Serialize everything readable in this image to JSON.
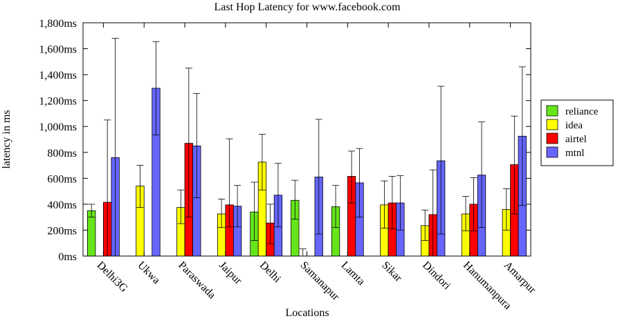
{
  "chart_data": {
    "type": "bar",
    "title": "Last Hop Latency for www.facebook.com",
    "xlabel": "Locations",
    "ylabel": "latency in ms",
    "ylim": [
      0,
      1800
    ],
    "y_ticks": [
      "0ms",
      "200ms",
      "400ms",
      "600ms",
      "800ms",
      "1,000ms",
      "1,200ms",
      "1,400ms",
      "1,600ms",
      "1,800ms"
    ],
    "categories": [
      "Delhi3G",
      "Ukwa",
      "Paraswada",
      "Jaipur",
      "Delhi",
      "Samanapur",
      "Lamta",
      "Sikar",
      "Dindori",
      "Hanumanpura",
      "Amarpur"
    ],
    "legend_position": "right",
    "grid": false,
    "series": [
      {
        "name": "reliance",
        "color": "#66e61a",
        "values": [
          350,
          null,
          null,
          null,
          340,
          430,
          380,
          null,
          null,
          null,
          null
        ],
        "err_low": [
          300,
          null,
          null,
          null,
          120,
          285,
          220,
          null,
          null,
          null,
          null
        ],
        "err_high": [
          400,
          null,
          null,
          null,
          570,
          585,
          545,
          null,
          null,
          null,
          null
        ]
      },
      {
        "name": "idea",
        "color": "#ffff00",
        "values": [
          null,
          540,
          375,
          325,
          725,
          0,
          null,
          395,
          235,
          325,
          360
        ],
        "err_low": [
          null,
          375,
          250,
          220,
          510,
          0,
          null,
          215,
          120,
          195,
          200
        ],
        "err_high": [
          null,
          700,
          510,
          440,
          940,
          55,
          null,
          580,
          355,
          460,
          520
        ]
      },
      {
        "name": "airtel",
        "color": "#ff0000",
        "values": [
          415,
          null,
          870,
          395,
          255,
          null,
          615,
          410,
          320,
          400,
          705
        ],
        "err_low": [
          0,
          null,
          300,
          225,
          95,
          null,
          410,
          210,
          0,
          195,
          325
        ],
        "err_high": [
          1050,
          null,
          1450,
          905,
          400,
          null,
          810,
          615,
          665,
          605,
          1080
        ]
      },
      {
        "name": "mtnl",
        "color": "#6666ff",
        "values": [
          760,
          1295,
          850,
          385,
          470,
          610,
          565,
          410,
          735,
          625,
          925
        ],
        "err_low": [
          0,
          935,
          450,
          225,
          225,
          170,
          300,
          200,
          170,
          220,
          390
        ],
        "err_high": [
          1680,
          1655,
          1255,
          545,
          715,
          1055,
          830,
          620,
          1310,
          1035,
          1460
        ]
      }
    ]
  }
}
